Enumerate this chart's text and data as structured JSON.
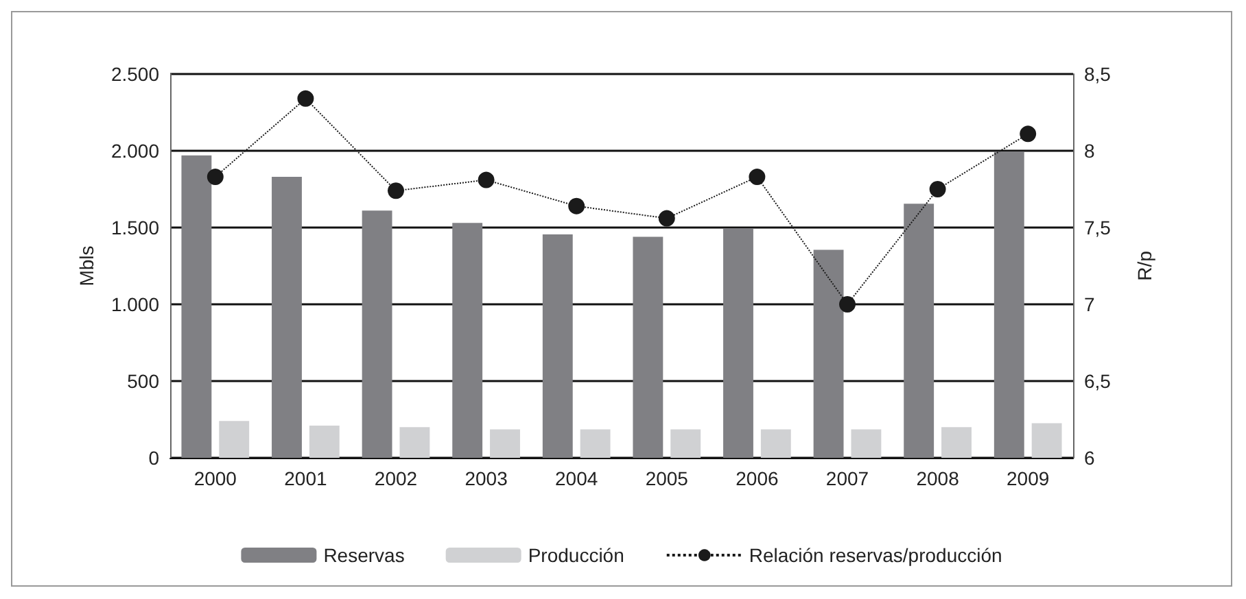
{
  "chart_data": {
    "type": "bar",
    "ylabel": "Mbls",
    "y2label": "R/p",
    "categories": [
      "2000",
      "2001",
      "2002",
      "2003",
      "2004",
      "2005",
      "2006",
      "2007",
      "2008",
      "2009"
    ],
    "series": [
      {
        "name": "Reservas",
        "color": "#808084",
        "values": [
          1970,
          1830,
          1610,
          1530,
          1455,
          1440,
          1495,
          1355,
          1655,
          1995
        ]
      },
      {
        "name": "Producción",
        "color": "#d0d1d3",
        "values": [
          240,
          210,
          200,
          185,
          185,
          185,
          185,
          185,
          200,
          225
        ]
      },
      {
        "name": "Relación reservas/producción",
        "type": "line",
        "axis": "y2",
        "color": "#1a1a1a",
        "marker": "circle",
        "line_style": "dotted",
        "values": [
          7.83,
          8.34,
          7.74,
          7.81,
          7.64,
          7.56,
          7.83,
          7.0,
          7.75,
          8.11
        ]
      }
    ],
    "ylim": [
      0,
      2500
    ],
    "yticks": [
      {
        "value": 0,
        "label": "0"
      },
      {
        "value": 500,
        "label": "500"
      },
      {
        "value": 1000,
        "label": "1.000"
      },
      {
        "value": 1500,
        "label": "1.500"
      },
      {
        "value": 2000,
        "label": "2.000"
      },
      {
        "value": 2500,
        "label": "2.500"
      }
    ],
    "y2lim": [
      6,
      8.5
    ],
    "y2ticks": [
      {
        "value": 6,
        "label": "6"
      },
      {
        "value": 6.5,
        "label": "6,5"
      },
      {
        "value": 7,
        "label": "7"
      },
      {
        "value": 7.5,
        "label": "7,5"
      },
      {
        "value": 8,
        "label": "8"
      },
      {
        "value": 8.5,
        "label": "8,5"
      }
    ],
    "grid": "y",
    "legend": "bottom"
  }
}
